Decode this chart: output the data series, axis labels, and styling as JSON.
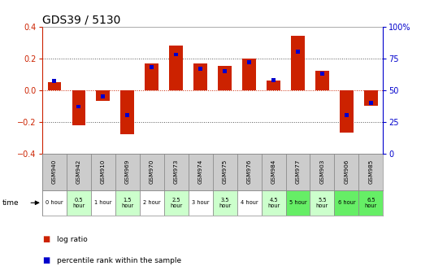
{
  "title": "GDS39 / 5130",
  "samples": [
    "GSM940",
    "GSM942",
    "GSM910",
    "GSM969",
    "GSM970",
    "GSM973",
    "GSM974",
    "GSM975",
    "GSM976",
    "GSM984",
    "GSM977",
    "GSM903",
    "GSM906",
    "GSM985"
  ],
  "times": [
    "0 hour",
    "0.5\nhour",
    "1 hour",
    "1.5\nhour",
    "2 hour",
    "2.5\nhour",
    "3 hour",
    "3.5\nhour",
    "4 hour",
    "4.5\nhour",
    "5 hour",
    "5.5\nhour",
    "6 hour",
    "6.5\nhour"
  ],
  "log_ratio": [
    0.05,
    -0.22,
    -0.07,
    -0.28,
    0.17,
    0.28,
    0.17,
    0.15,
    0.2,
    0.06,
    0.34,
    0.12,
    -0.27,
    -0.1
  ],
  "percentile": [
    57,
    37,
    45,
    30,
    68,
    78,
    67,
    65,
    72,
    58,
    80,
    63,
    30,
    40
  ],
  "bar_color": "#cc2200",
  "pct_color": "#0000cc",
  "ylim": [
    -0.4,
    0.4
  ],
  "yticks_left": [
    -0.4,
    -0.2,
    0.0,
    0.2,
    0.4
  ],
  "y2lim": [
    0,
    100
  ],
  "y2ticks": [
    0,
    25,
    50,
    75,
    100
  ],
  "zero_line_color": "#cc2200",
  "bg_color": "#ffffff",
  "grid_color": "#555555",
  "time_colors": [
    "#ffffff",
    "#ccffcc",
    "#ffffff",
    "#ccffcc",
    "#ffffff",
    "#ccffcc",
    "#ffffff",
    "#ccffcc",
    "#ffffff",
    "#ccffcc",
    "#66ee66",
    "#ccffcc",
    "#66ee66",
    "#66ee66"
  ],
  "header_color": "#cccccc",
  "tick_fontsize": 7,
  "bar_width": 0.55,
  "pct_bar_width": 0.18
}
